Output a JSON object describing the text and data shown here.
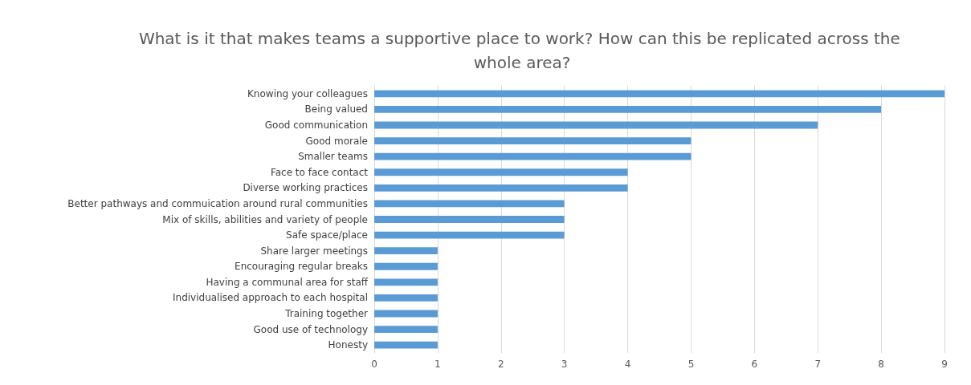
{
  "chart_data": {
    "type": "bar",
    "orientation": "horizontal",
    "title": "What is it that makes teams a supportive place to work? How can this be replicated across the whole area?",
    "categories": [
      "Knowing your colleagues",
      "Being valued",
      "Good communication",
      "Good morale",
      "Smaller teams",
      "Face to face contact",
      "Diverse working practices",
      "Better pathways and commuication around rural communities",
      "Mix of skills, abilities and variety of people",
      "Safe space/place",
      "Share larger meetings",
      "Encouraging regular breaks",
      "Having a communal area for staff",
      "Individualised approach to each hospital",
      "Training together",
      "Good use of technology",
      "Honesty"
    ],
    "values": [
      9,
      8,
      7,
      5,
      5,
      4,
      4,
      3,
      3,
      3,
      1,
      1,
      1,
      1,
      1,
      1,
      1
    ],
    "color": "#5b9bd5",
    "xlim": [
      0,
      9
    ],
    "xticks": [
      0,
      1,
      2,
      3,
      4,
      5,
      6,
      7,
      8,
      9
    ],
    "grid": "x"
  }
}
